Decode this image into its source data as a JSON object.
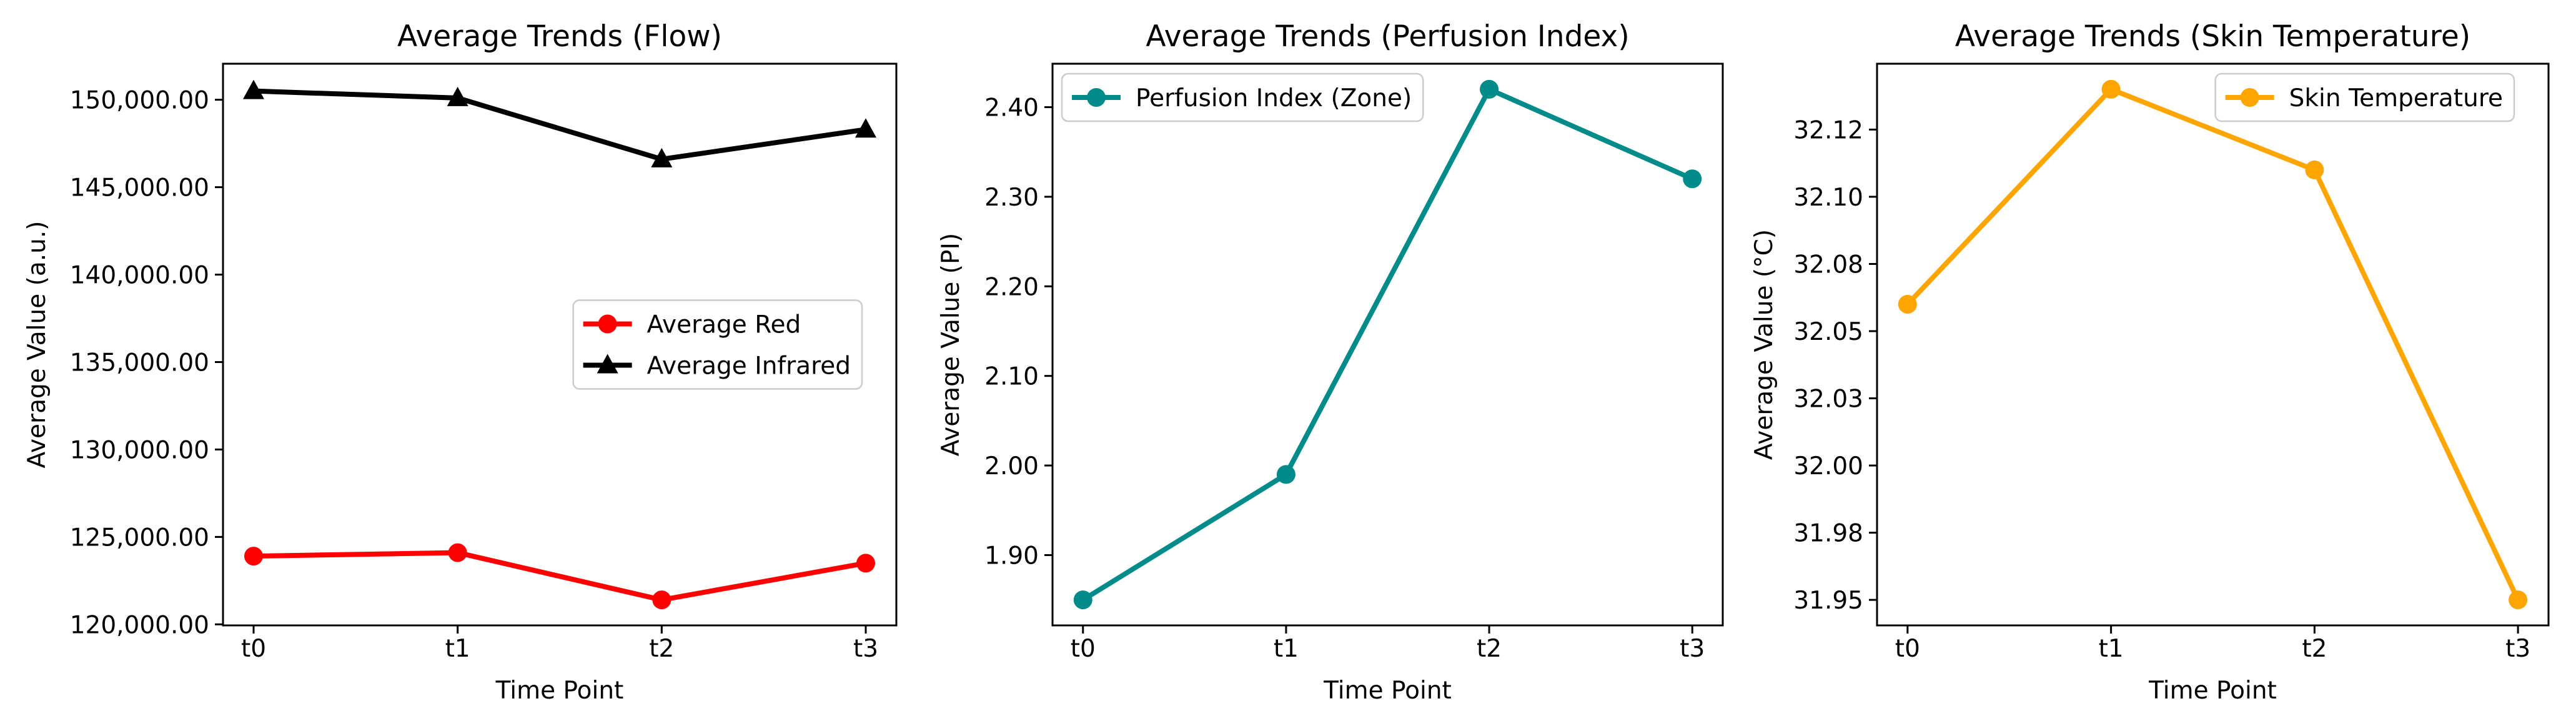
{
  "figure": {
    "background": "#ffffff",
    "text_color": "#000000",
    "spine_color": "#000000",
    "legend_border_color": "#cccccc",
    "charts_count": 3
  },
  "chart_data": [
    {
      "type": "line",
      "title": "Average Trends (Flow)",
      "xlabel": "Time Point",
      "ylabel": "Average Value (a.u.)",
      "categories": [
        "t0",
        "t1",
        "t2",
        "t3"
      ],
      "series": [
        {
          "name": "Average Red",
          "color": "#ff0000",
          "marker": "circle",
          "values": [
            123900,
            124100,
            121400,
            123500
          ]
        },
        {
          "name": "Average Infrared",
          "color": "#000000",
          "marker": "triangle",
          "values": [
            150500,
            150100,
            146600,
            148300
          ]
        }
      ],
      "ylim": [
        119940,
        152060
      ],
      "yticks": {
        "values": [
          120000,
          125000,
          130000,
          135000,
          140000,
          145000,
          150000
        ],
        "labels": [
          "120,000.00",
          "125,000.00",
          "130,000.00",
          "135,000.00",
          "140,000.00",
          "145,000.00",
          "150,000.00"
        ]
      },
      "legend": {
        "position": "center-right",
        "entries": [
          "Average Red",
          "Average Infrared"
        ]
      },
      "grid": false
    },
    {
      "type": "line",
      "title": "Average Trends (Perfusion Index)",
      "xlabel": "Time Point",
      "ylabel": "Average Value (PI)",
      "categories": [
        "t0",
        "t1",
        "t2",
        "t3"
      ],
      "series": [
        {
          "name": "Perfusion Index (Zone)",
          "color": "#008b8b",
          "marker": "circle",
          "values": [
            1.85,
            1.99,
            2.42,
            2.32
          ]
        }
      ],
      "ylim": [
        1.8215,
        2.4485
      ],
      "yticks": {
        "values": [
          1.9,
          2.0,
          2.1,
          2.2,
          2.3,
          2.4
        ],
        "labels": [
          "1.90",
          "2.00",
          "2.10",
          "2.20",
          "2.30",
          "2.40"
        ]
      },
      "legend": {
        "position": "upper-left",
        "entries": [
          "Perfusion Index (Zone)"
        ]
      },
      "grid": false
    },
    {
      "type": "line",
      "title": "Average Trends (Skin Temperature)",
      "xlabel": "Time Point",
      "ylabel": "Average Value (°C)",
      "categories": [
        "t0",
        "t1",
        "t2",
        "t3"
      ],
      "series": [
        {
          "name": "Skin Temperature",
          "color": "#ffa500",
          "marker": "circle",
          "values": [
            32.06,
            32.14,
            32.11,
            31.95
          ]
        }
      ],
      "ylim": [
        31.9405,
        32.1495
      ],
      "yticks": {
        "values": [
          31.95,
          31.975,
          32.0,
          32.025,
          32.05,
          32.075,
          32.1,
          32.125
        ],
        "labels": [
          "31.95",
          "31.98",
          "32.00",
          "32.03",
          "32.05",
          "32.08",
          "32.10",
          "32.12"
        ]
      },
      "legend": {
        "position": "upper-right",
        "entries": [
          "Skin Temperature"
        ]
      },
      "grid": false
    }
  ]
}
